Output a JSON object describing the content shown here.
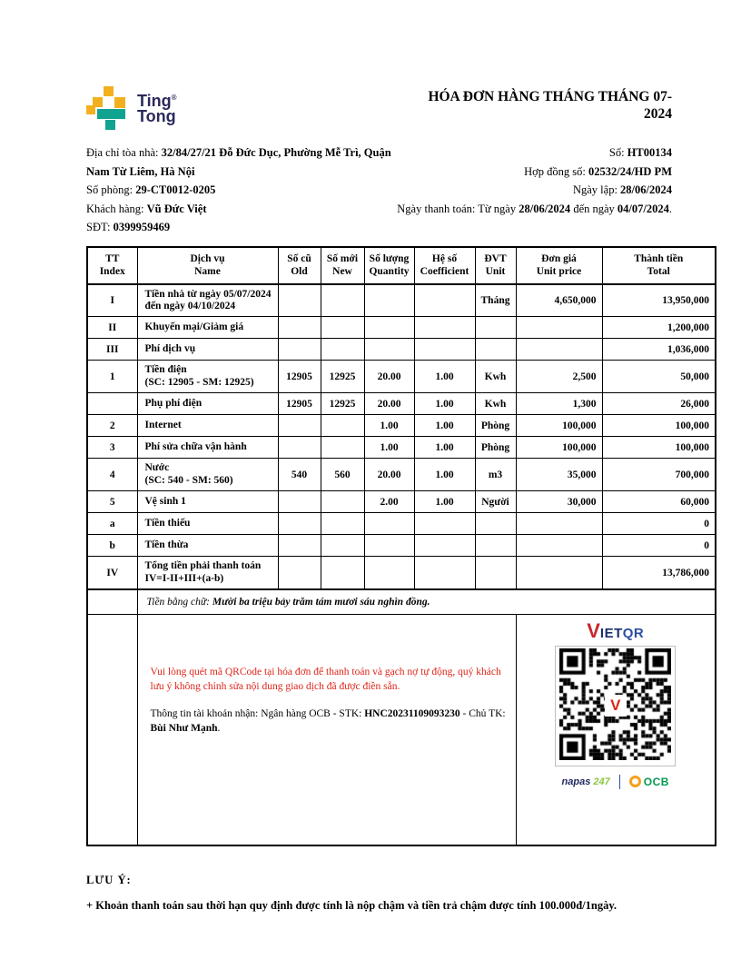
{
  "brand": {
    "line1": "Ting",
    "reg": "®",
    "line2": "Tong"
  },
  "title": {
    "line1": "HÓA ĐƠN HÀNG THÁNG THÁNG 07-",
    "line2": "2024"
  },
  "meta": {
    "address_label": "Địa chỉ tòa nhà: ",
    "address_value1": "32/84/27/21 Đỗ Đức Dục, Phường Mễ Trì, Quận",
    "address_value2": "Nam Từ Liêm, Hà Nội",
    "room_label": "Số phòng: ",
    "room_value": "29-CT0012-0205",
    "customer_label": "Khách hàng: ",
    "customer_value": "Vũ Đức Việt",
    "phone_label": "SĐT: ",
    "phone_value": "0399959469",
    "number_label": "Số: ",
    "number_value": "HT00134",
    "contract_label": "Hợp đồng số: ",
    "contract_value": "02532/24/HD PM",
    "issue_label": "Ngày lập: ",
    "issue_value": "28/06/2024",
    "period_label": "Ngày thanh toán: Từ ngày ",
    "period_from": "28/06/2024",
    "period_mid": " đến ngày ",
    "period_to": "04/07/2024",
    "period_suffix": "."
  },
  "table": {
    "headers": [
      [
        "TT",
        "Index"
      ],
      [
        "Dịch vụ",
        "Name"
      ],
      [
        "Số cũ",
        "Old"
      ],
      [
        "Số mới",
        "New"
      ],
      [
        "Số lượng",
        "Quantity"
      ],
      [
        "Hệ số",
        "Coefficient"
      ],
      [
        "ĐVT",
        "Unit"
      ],
      [
        "Đơn giá",
        "Unit price"
      ],
      [
        "Thành tiền",
        "Total"
      ]
    ],
    "rows": [
      {
        "tt": "I",
        "name": [
          "Tiền nhà từ ngày 05/07/2024",
          "đến ngày 04/10/2024"
        ],
        "old": "",
        "new": "",
        "qty": "",
        "coef": "",
        "unit": "Tháng",
        "price": "4,650,000",
        "total": "13,950,000"
      },
      {
        "tt": "II",
        "name": [
          "Khuyến mại/Giảm giá"
        ],
        "old": "",
        "new": "",
        "qty": "",
        "coef": "",
        "unit": "",
        "price": "",
        "total": "1,200,000"
      },
      {
        "tt": "III",
        "name": [
          "Phí dịch vụ"
        ],
        "old": "",
        "new": "",
        "qty": "",
        "coef": "",
        "unit": "",
        "price": "",
        "total": "1,036,000"
      },
      {
        "tt": "1",
        "name": [
          "Tiền điện",
          "(SC: 12905 - SM: 12925)"
        ],
        "old": "12905",
        "new": "12925",
        "qty": "20.00",
        "coef": "1.00",
        "unit": "Kwh",
        "price": "2,500",
        "total": "50,000"
      },
      {
        "tt": "",
        "name": [
          "Phụ phí điện"
        ],
        "old": "12905",
        "new": "12925",
        "qty": "20.00",
        "coef": "1.00",
        "unit": "Kwh",
        "price": "1,300",
        "total": "26,000"
      },
      {
        "tt": "2",
        "name": [
          "Internet"
        ],
        "old": "",
        "new": "",
        "qty": "1.00",
        "coef": "1.00",
        "unit": "Phòng",
        "price": "100,000",
        "total": "100,000"
      },
      {
        "tt": "3",
        "name": [
          "Phí sửa chữa vận hành"
        ],
        "old": "",
        "new": "",
        "qty": "1.00",
        "coef": "1.00",
        "unit": "Phòng",
        "price": "100,000",
        "total": "100,000"
      },
      {
        "tt": "4",
        "name": [
          "Nước",
          "(SC: 540 - SM: 560)"
        ],
        "old": "540",
        "new": "560",
        "qty": "20.00",
        "coef": "1.00",
        "unit": "m3",
        "price": "35,000",
        "total": "700,000"
      },
      {
        "tt": "5",
        "name": [
          "Vệ sinh 1"
        ],
        "old": "",
        "new": "",
        "qty": "2.00",
        "coef": "1.00",
        "unit": "Người",
        "price": "30,000",
        "total": "60,000"
      },
      {
        "tt": "a",
        "name": [
          "Tiền thiếu"
        ],
        "old": "",
        "new": "",
        "qty": "",
        "coef": "",
        "unit": "",
        "price": "",
        "total": "0"
      },
      {
        "tt": "b",
        "name": [
          "Tiền thừa"
        ],
        "old": "",
        "new": "",
        "qty": "",
        "coef": "",
        "unit": "",
        "price": "",
        "total": "0"
      },
      {
        "tt": "IV",
        "name": [
          "Tổng tiền phải thanh toán",
          "IV=I-II+III+(a-b)"
        ],
        "old": "",
        "new": "",
        "qty": "",
        "coef": "",
        "unit": "",
        "price": "",
        "total": "13,786,000"
      }
    ],
    "words_label": "Tiền bằng chữ: ",
    "words_value": "Mười ba triệu bảy trăm tám mươi sáu nghìn đồng."
  },
  "payment": {
    "notice": "Vui lòng quét mã QRCode tại hóa đơn để thanh toán và gạch nợ tự động, quý khách lưu ý không chỉnh sửa nội dung giao dịch đã được điền sẵn.",
    "account_label": "Thông tin tài khoản nhận: Ngân hàng OCB - STK: ",
    "account_number": "HNC20231109093230",
    "account_mid": " - Chủ TK: ",
    "account_holder": "Bùi Như Mạnh",
    "account_suffix": ".",
    "qr": {
      "brand_v": "V",
      "brand_rest1": "IET",
      "brand_rest2": "QR",
      "center_mark": "V",
      "napas": "napas",
      "napas_num": "247",
      "bank": "OCB"
    }
  },
  "footer": {
    "note_title": "LƯU Ý:",
    "note_body": "+ Khoản thanh toán sau thời hạn quy định được tính là nộp chậm và tiền trả chậm được tính 100.000đ/1ngày."
  },
  "colors": {
    "accent_red": "#DD2418",
    "brand_navy": "#2A2A5C",
    "brand_yellow": "#F2B01F",
    "brand_teal": "#0FA390",
    "vietqr_red": "#C9252C",
    "vietqr_navy": "#1B2F6E",
    "napas_green": "#8CC63F",
    "ocb_orange": "#F6A01A",
    "ocb_green": "#009A4E"
  }
}
